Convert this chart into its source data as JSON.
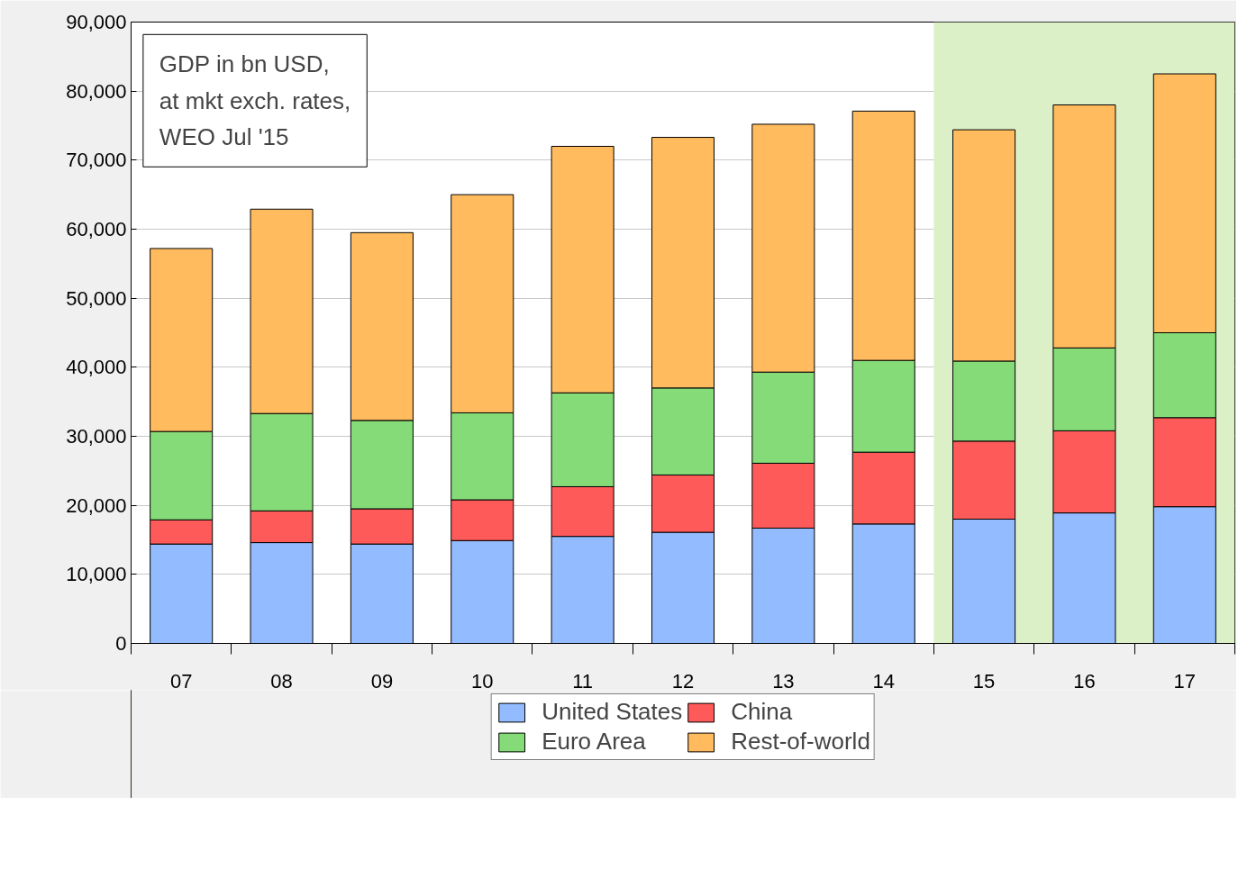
{
  "chart_data": {
    "type": "bar",
    "stacked": true,
    "categories": [
      "07",
      "08",
      "09",
      "10",
      "11",
      "12",
      "13",
      "14",
      "15",
      "16",
      "17"
    ],
    "series": [
      {
        "name": "United States",
        "color": "#93bbff",
        "values": [
          14400,
          14600,
          14400,
          14900,
          15500,
          16100,
          16700,
          17300,
          18000,
          18900,
          19800
        ]
      },
      {
        "name": "China",
        "color": "#ff5a5a",
        "values": [
          3500,
          4600,
          5100,
          5900,
          7200,
          8300,
          9400,
          10400,
          11300,
          11900,
          12900
        ]
      },
      {
        "name": "Euro Area",
        "color": "#84db78",
        "values": [
          12800,
          14100,
          12800,
          12600,
          13600,
          12600,
          13200,
          13300,
          11600,
          12000,
          12300
        ]
      },
      {
        "name": "Rest-of-world",
        "color": "#ffbb5e",
        "values": [
          26500,
          29600,
          27200,
          31600,
          35700,
          36300,
          35900,
          36100,
          33500,
          35200,
          37500
        ]
      }
    ],
    "ylim": [
      0,
      90000
    ],
    "yticks": [
      {
        "value": 0,
        "label": "0"
      },
      {
        "value": 10000,
        "label": "10,000"
      },
      {
        "value": 20000,
        "label": "20,000"
      },
      {
        "value": 30000,
        "label": "30,000"
      },
      {
        "value": 40000,
        "label": "40,000"
      },
      {
        "value": 50000,
        "label": "50,000"
      },
      {
        "value": 60000,
        "label": "60,000"
      },
      {
        "value": 70000,
        "label": "70,000"
      },
      {
        "value": 80000,
        "label": "80,000"
      },
      {
        "value": 90000,
        "label": "90,000"
      }
    ],
    "grid": "y",
    "legend": "bottom",
    "bands": [
      {
        "axis": "x",
        "from": "15",
        "to": "17",
        "color": "#dcf0c8"
      }
    ],
    "annotations": [
      "GDP in bn USD,\nat mkt exch. rates,\nWEO Jul '15"
    ]
  }
}
